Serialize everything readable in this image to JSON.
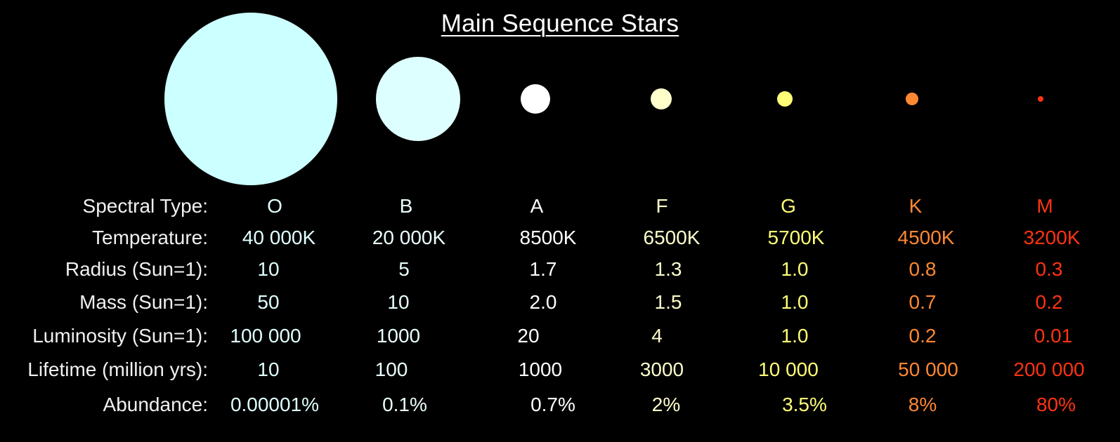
{
  "title": "Main Sequence Stars",
  "title_color": "#ffffff",
  "label_color": "#f0f0f0",
  "rows": [
    {
      "key": "type",
      "label": "Spectral Type:"
    },
    {
      "key": "temp",
      "label": "Temperature:"
    },
    {
      "key": "radius",
      "label": "Radius (Sun=1):"
    },
    {
      "key": "mass",
      "label": "Mass (Sun=1):"
    },
    {
      "key": "lum",
      "label": "Luminosity (Sun=1):"
    },
    {
      "key": "life",
      "label": "Lifetime (million yrs):"
    },
    {
      "key": "abund",
      "label": "Abundance:"
    }
  ],
  "stars": [
    {
      "type": "O",
      "temp": "40 000K",
      "radius": "10",
      "mass": "50",
      "lum": "100 000",
      "life": "10",
      "abund": "0.00001%",
      "star_color": "#ccffff",
      "text_color": "#e0ffff"
    },
    {
      "type": "B",
      "temp": "20 000K",
      "radius": "5",
      "mass": "10",
      "lum": "1000",
      "life": "100",
      "abund": "0.1%",
      "star_color": "#ddffff",
      "text_color": "#eaffff"
    },
    {
      "type": "A",
      "temp": "8500K",
      "radius": "1.7",
      "mass": "2.0",
      "lum": "20",
      "life": "1000",
      "abund": "0.7%",
      "star_color": "#ffffff",
      "text_color": "#ffffff"
    },
    {
      "type": "F",
      "temp": "6500K",
      "radius": "1.3",
      "mass": "1.5",
      "lum": "4",
      "life": "3000",
      "abund": "2%",
      "star_color": "#ffffcc",
      "text_color": "#ffffcc"
    },
    {
      "type": "G",
      "temp": "5700K",
      "radius": "1.0",
      "mass": "1.0",
      "lum": "1.0",
      "life": "10 000",
      "abund": "3.5%",
      "star_color": "#ffff77",
      "text_color": "#ffff77"
    },
    {
      "type": "K",
      "temp": "4500K",
      "radius": "0.8",
      "mass": "0.7",
      "lum": "0.2",
      "life": "50 000",
      "abund": "8%",
      "star_color": "#ff8833",
      "text_color": "#ff8833"
    },
    {
      "type": "M",
      "temp": "3200K",
      "radius": "0.3",
      "mass": "0.2",
      "lum": "0.01",
      "life": "200 000",
      "abund": "80%",
      "star_color": "#ff3311",
      "text_color": "#ff3311"
    }
  ]
}
